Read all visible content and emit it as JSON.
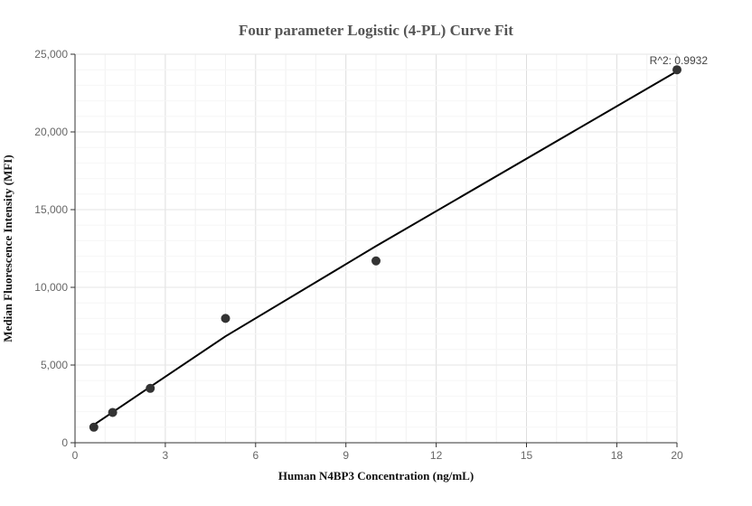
{
  "chart_data": {
    "type": "scatter",
    "title": "Four parameter Logistic (4-PL) Curve Fit",
    "xlabel": "Human N4BP3 Concentration (ng/mL)",
    "ylabel": "Median Fluorescence Intensity (MFI)",
    "xlim": [
      0,
      20
    ],
    "ylim": [
      0,
      25000
    ],
    "x_ticks": [
      0,
      3,
      6,
      9,
      12,
      15,
      18,
      20
    ],
    "x_tick_labels": [
      "0",
      "3",
      "6",
      "9",
      "12",
      "15",
      "18",
      "20"
    ],
    "y_ticks": [
      0,
      5000,
      10000,
      15000,
      20000,
      25000
    ],
    "y_tick_labels": [
      "0",
      "5,000",
      "10,000",
      "15,000",
      "20,000",
      "25,000"
    ],
    "grid": true,
    "points": {
      "x": [
        0.625,
        1.25,
        2.5,
        5,
        10,
        20
      ],
      "y": [
        1000,
        1950,
        3500,
        8000,
        11700,
        24000
      ]
    },
    "fit_curve": {
      "x": [
        0.625,
        2.5,
        5,
        10,
        20
      ],
      "y": [
        1150,
        3600,
        6850,
        12650,
        23900
      ]
    },
    "annotation": "R^2: 0.9932",
    "colors": {
      "points": "#333333",
      "curve": "#000000",
      "grid": "#e6e6e6",
      "axis": "#333333"
    }
  }
}
